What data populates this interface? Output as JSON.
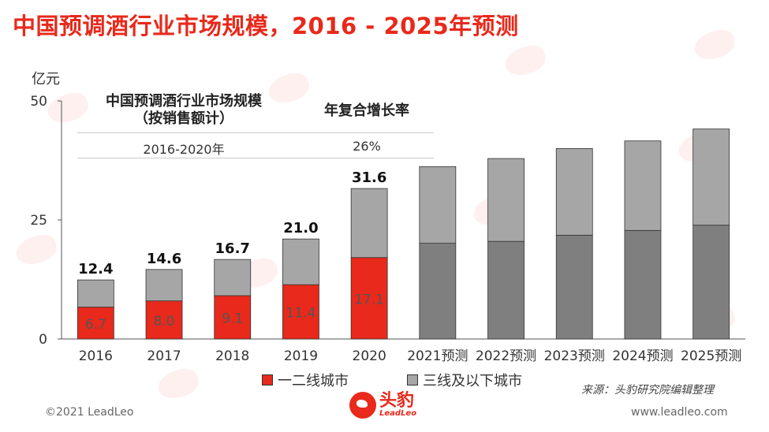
{
  "title": "中国预调酒行业市场规模，2016 - 2025年预测",
  "unit": "亿元",
  "table": {
    "header_left": "中国预调酒行业市场规模",
    "header_left_sub": "（按销售额计）",
    "header_right": "年复合增长率",
    "period": "2016-2020年",
    "cagr": "26%"
  },
  "legend": {
    "series1": "一二线城市",
    "series2": "三线及以下城市"
  },
  "source": "来源：头豹研究院编辑整理",
  "copyright": "©2021 LeadLeo",
  "website": "www.leadleo.com",
  "logo": {
    "cn": "头豹",
    "en": "LeadLeo"
  },
  "colors": {
    "accent": "#e8291b",
    "tier1": "#e8291b",
    "tier3": "#a6a6a6",
    "forecast_lower": "#7f7f7f",
    "forecast_upper": "#a6a6a6"
  },
  "chart_data": {
    "type": "bar",
    "stacked": true,
    "categories": [
      "2016",
      "2017",
      "2018",
      "2019",
      "2020",
      "2021预测",
      "2022预测",
      "2023预测",
      "2024预测",
      "2025预测"
    ],
    "ylim": [
      0,
      50
    ],
    "yticks": [
      0,
      25,
      50
    ],
    "series": [
      {
        "name": "一二线城市",
        "values": [
          6.7,
          8.0,
          9.1,
          11.4,
          17.1,
          20.1,
          20.5,
          21.8,
          22.8,
          23.9
        ]
      },
      {
        "name": "三线及以下城市",
        "values": [
          5.7,
          6.6,
          7.6,
          9.6,
          14.5,
          16.1,
          17.4,
          18.2,
          18.8,
          20.2
        ]
      }
    ],
    "value_labels": [
      "6.7",
      "8.0",
      "9.1",
      "11.4",
      "17.1"
    ],
    "total_labels": [
      "12.4",
      "14.6",
      "16.7",
      "21.0",
      "31.6"
    ],
    "grid": false,
    "legend_position": "bottom"
  }
}
